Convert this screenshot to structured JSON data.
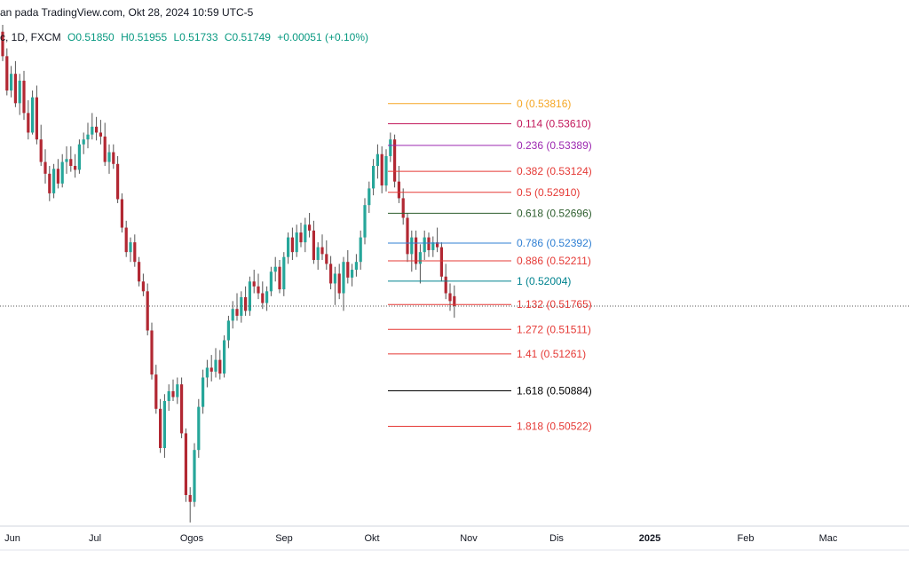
{
  "header": {
    "caption": "an pada TradingView.com, Okt 28, 2024 10:59 UTC-5",
    "symbol_suffix": "c, 1D, FXCM",
    "open": "O0.51850",
    "high": "H0.51955",
    "low": "L0.51733",
    "close": "C0.51749",
    "change": "+0.00051 (+0.10%)"
  },
  "colors": {
    "up": "#26a69a",
    "down": "#b22833",
    "wick": "#555555"
  },
  "chart_data": {
    "type": "candlestick",
    "title": "",
    "ylim": [
      0.4953,
      0.5462
    ],
    "last_price": 0.51749,
    "x_labels": [
      "Jun",
      "Jul",
      "Ogos",
      "Sep",
      "Okt",
      "Nov",
      "Dis",
      "2025",
      "Feb",
      "Mac"
    ],
    "candles": [
      {
        "date": "2024-06-03",
        "o": 0.5455,
        "h": 0.5462,
        "l": 0.5425,
        "c": 0.543
      },
      {
        "date": "2024-06-04",
        "o": 0.543,
        "h": 0.5438,
        "l": 0.539,
        "c": 0.5395
      },
      {
        "date": "2024-06-05",
        "o": 0.5395,
        "h": 0.542,
        "l": 0.5388,
        "c": 0.5412
      },
      {
        "date": "2024-06-06",
        "o": 0.5412,
        "h": 0.5425,
        "l": 0.5378,
        "c": 0.5382
      },
      {
        "date": "2024-06-07",
        "o": 0.5382,
        "h": 0.5412,
        "l": 0.537,
        "c": 0.5405
      },
      {
        "date": "2024-06-10",
        "o": 0.5405,
        "h": 0.5415,
        "l": 0.5365,
        "c": 0.5372
      },
      {
        "date": "2024-06-11",
        "o": 0.5372,
        "h": 0.5385,
        "l": 0.5345,
        "c": 0.5352
      },
      {
        "date": "2024-06-12",
        "o": 0.5352,
        "h": 0.5395,
        "l": 0.535,
        "c": 0.5388
      },
      {
        "date": "2024-06-13",
        "o": 0.5388,
        "h": 0.54,
        "l": 0.534,
        "c": 0.5345
      },
      {
        "date": "2024-06-14",
        "o": 0.5345,
        "h": 0.536,
        "l": 0.5318,
        "c": 0.5322
      },
      {
        "date": "2024-06-17",
        "o": 0.5322,
        "h": 0.5335,
        "l": 0.53,
        "c": 0.531
      },
      {
        "date": "2024-06-18",
        "o": 0.531,
        "h": 0.5318,
        "l": 0.5282,
        "c": 0.529
      },
      {
        "date": "2024-06-19",
        "o": 0.529,
        "h": 0.532,
        "l": 0.5285,
        "c": 0.5315
      },
      {
        "date": "2024-06-20",
        "o": 0.5315,
        "h": 0.5325,
        "l": 0.5295,
        "c": 0.53
      },
      {
        "date": "2024-06-21",
        "o": 0.53,
        "h": 0.533,
        "l": 0.5296,
        "c": 0.5322
      },
      {
        "date": "2024-06-24",
        "o": 0.5322,
        "h": 0.5338,
        "l": 0.531,
        "c": 0.5325
      },
      {
        "date": "2024-06-25",
        "o": 0.5325,
        "h": 0.5338,
        "l": 0.5312,
        "c": 0.5318
      },
      {
        "date": "2024-06-26",
        "o": 0.5318,
        "h": 0.533,
        "l": 0.5306,
        "c": 0.5314
      },
      {
        "date": "2024-06-27",
        "o": 0.5314,
        "h": 0.5345,
        "l": 0.531,
        "c": 0.534
      },
      {
        "date": "2024-06-28",
        "o": 0.534,
        "h": 0.5352,
        "l": 0.533,
        "c": 0.5345
      },
      {
        "date": "2024-07-01",
        "o": 0.5345,
        "h": 0.5362,
        "l": 0.5336,
        "c": 0.535
      },
      {
        "date": "2024-07-02",
        "o": 0.535,
        "h": 0.5372,
        "l": 0.5345,
        "c": 0.5358
      },
      {
        "date": "2024-07-03",
        "o": 0.5358,
        "h": 0.5368,
        "l": 0.5344,
        "c": 0.5352
      },
      {
        "date": "2024-07-05",
        "o": 0.5352,
        "h": 0.5365,
        "l": 0.534,
        "c": 0.5348
      },
      {
        "date": "2024-07-08",
        "o": 0.5348,
        "h": 0.5362,
        "l": 0.5318,
        "c": 0.5322
      },
      {
        "date": "2024-07-09",
        "o": 0.5322,
        "h": 0.534,
        "l": 0.531,
        "c": 0.5332
      },
      {
        "date": "2024-07-10",
        "o": 0.5332,
        "h": 0.534,
        "l": 0.5315,
        "c": 0.532
      },
      {
        "date": "2024-07-11",
        "o": 0.532,
        "h": 0.5328,
        "l": 0.528,
        "c": 0.5284
      },
      {
        "date": "2024-07-12",
        "o": 0.5284,
        "h": 0.529,
        "l": 0.525,
        "c": 0.5255
      },
      {
        "date": "2024-07-15",
        "o": 0.5255,
        "h": 0.5262,
        "l": 0.5225,
        "c": 0.523
      },
      {
        "date": "2024-07-16",
        "o": 0.523,
        "h": 0.5245,
        "l": 0.522,
        "c": 0.524
      },
      {
        "date": "2024-07-17",
        "o": 0.524,
        "h": 0.5248,
        "l": 0.5215,
        "c": 0.522
      },
      {
        "date": "2024-07-18",
        "o": 0.522,
        "h": 0.5225,
        "l": 0.5195,
        "c": 0.52
      },
      {
        "date": "2024-07-19",
        "o": 0.52,
        "h": 0.5208,
        "l": 0.5185,
        "c": 0.519
      },
      {
        "date": "2024-07-22",
        "o": 0.519,
        "h": 0.5198,
        "l": 0.5145,
        "c": 0.515
      },
      {
        "date": "2024-07-23",
        "o": 0.515,
        "h": 0.5158,
        "l": 0.51,
        "c": 0.5105
      },
      {
        "date": "2024-07-24",
        "o": 0.5105,
        "h": 0.5115,
        "l": 0.5065,
        "c": 0.507
      },
      {
        "date": "2024-07-25",
        "o": 0.507,
        "h": 0.508,
        "l": 0.5025,
        "c": 0.503
      },
      {
        "date": "2024-07-26",
        "o": 0.503,
        "h": 0.5085,
        "l": 0.502,
        "c": 0.5078
      },
      {
        "date": "2024-07-29",
        "o": 0.5078,
        "h": 0.5095,
        "l": 0.5068,
        "c": 0.5088
      },
      {
        "date": "2024-07-30",
        "o": 0.5088,
        "h": 0.51,
        "l": 0.5078,
        "c": 0.5082
      },
      {
        "date": "2024-07-31",
        "o": 0.5082,
        "h": 0.5102,
        "l": 0.5075,
        "c": 0.5095
      },
      {
        "date": "2024-08-01",
        "o": 0.5095,
        "h": 0.5102,
        "l": 0.504,
        "c": 0.5045
      },
      {
        "date": "2024-08-02",
        "o": 0.5045,
        "h": 0.505,
        "l": 0.4975,
        "c": 0.4982
      },
      {
        "date": "2024-08-05",
        "o": 0.4982,
        "h": 0.499,
        "l": 0.4954,
        "c": 0.4975
      },
      {
        "date": "2024-08-06",
        "o": 0.4975,
        "h": 0.5035,
        "l": 0.497,
        "c": 0.5028
      },
      {
        "date": "2024-08-07",
        "o": 0.5028,
        "h": 0.508,
        "l": 0.502,
        "c": 0.5072
      },
      {
        "date": "2024-08-08",
        "o": 0.5072,
        "h": 0.511,
        "l": 0.5065,
        "c": 0.5102
      },
      {
        "date": "2024-08-09",
        "o": 0.5102,
        "h": 0.512,
        "l": 0.5092,
        "c": 0.5112
      },
      {
        "date": "2024-08-12",
        "o": 0.5112,
        "h": 0.5125,
        "l": 0.5098,
        "c": 0.5108
      },
      {
        "date": "2024-08-13",
        "o": 0.5108,
        "h": 0.5132,
        "l": 0.5102,
        "c": 0.512
      },
      {
        "date": "2024-08-14",
        "o": 0.512,
        "h": 0.513,
        "l": 0.51,
        "c": 0.5106
      },
      {
        "date": "2024-08-15",
        "o": 0.5106,
        "h": 0.5145,
        "l": 0.5102,
        "c": 0.514
      },
      {
        "date": "2024-08-16",
        "o": 0.514,
        "h": 0.5165,
        "l": 0.5132,
        "c": 0.516
      },
      {
        "date": "2024-08-19",
        "o": 0.516,
        "h": 0.518,
        "l": 0.5152,
        "c": 0.5172
      },
      {
        "date": "2024-08-20",
        "o": 0.5172,
        "h": 0.5188,
        "l": 0.516,
        "c": 0.5165
      },
      {
        "date": "2024-08-21",
        "o": 0.5165,
        "h": 0.519,
        "l": 0.5158,
        "c": 0.5184
      },
      {
        "date": "2024-08-22",
        "o": 0.5184,
        "h": 0.5195,
        "l": 0.5165,
        "c": 0.517
      },
      {
        "date": "2024-08-23",
        "o": 0.517,
        "h": 0.5205,
        "l": 0.5165,
        "c": 0.52
      },
      {
        "date": "2024-08-26",
        "o": 0.52,
        "h": 0.5212,
        "l": 0.5188,
        "c": 0.5195
      },
      {
        "date": "2024-08-27",
        "o": 0.5195,
        "h": 0.5208,
        "l": 0.5182,
        "c": 0.5188
      },
      {
        "date": "2024-08-28",
        "o": 0.5188,
        "h": 0.52,
        "l": 0.5172,
        "c": 0.5178
      },
      {
        "date": "2024-08-29",
        "o": 0.5178,
        "h": 0.5195,
        "l": 0.517,
        "c": 0.519
      },
      {
        "date": "2024-08-30",
        "o": 0.519,
        "h": 0.5215,
        "l": 0.5185,
        "c": 0.521
      },
      {
        "date": "2024-09-02",
        "o": 0.521,
        "h": 0.5225,
        "l": 0.52,
        "c": 0.5215
      },
      {
        "date": "2024-09-03",
        "o": 0.5215,
        "h": 0.5222,
        "l": 0.5188,
        "c": 0.5192
      },
      {
        "date": "2024-09-04",
        "o": 0.5192,
        "h": 0.523,
        "l": 0.5185,
        "c": 0.5225
      },
      {
        "date": "2024-09-05",
        "o": 0.5225,
        "h": 0.525,
        "l": 0.5218,
        "c": 0.5245
      },
      {
        "date": "2024-09-06",
        "o": 0.5245,
        "h": 0.5255,
        "l": 0.5222,
        "c": 0.523
      },
      {
        "date": "2024-09-09",
        "o": 0.523,
        "h": 0.5258,
        "l": 0.5225,
        "c": 0.525
      },
      {
        "date": "2024-09-10",
        "o": 0.525,
        "h": 0.526,
        "l": 0.5235,
        "c": 0.524
      },
      {
        "date": "2024-09-11",
        "o": 0.524,
        "h": 0.5265,
        "l": 0.523,
        "c": 0.5258
      },
      {
        "date": "2024-09-12",
        "o": 0.5258,
        "h": 0.527,
        "l": 0.5245,
        "c": 0.5252
      },
      {
        "date": "2024-09-13",
        "o": 0.5252,
        "h": 0.5262,
        "l": 0.5218,
        "c": 0.5222
      },
      {
        "date": "2024-09-16",
        "o": 0.5222,
        "h": 0.524,
        "l": 0.5212,
        "c": 0.5235
      },
      {
        "date": "2024-09-17",
        "o": 0.5235,
        "h": 0.5248,
        "l": 0.5222,
        "c": 0.5228
      },
      {
        "date": "2024-09-18",
        "o": 0.5228,
        "h": 0.5242,
        "l": 0.5212,
        "c": 0.5218
      },
      {
        "date": "2024-09-19",
        "o": 0.5218,
        "h": 0.5226,
        "l": 0.5192,
        "c": 0.5198
      },
      {
        "date": "2024-09-20",
        "o": 0.5198,
        "h": 0.5215,
        "l": 0.5176,
        "c": 0.5208
      },
      {
        "date": "2024-09-23",
        "o": 0.5208,
        "h": 0.5218,
        "l": 0.5182,
        "c": 0.5188
      },
      {
        "date": "2024-09-24",
        "o": 0.5188,
        "h": 0.5225,
        "l": 0.517,
        "c": 0.522
      },
      {
        "date": "2024-09-25",
        "o": 0.522,
        "h": 0.5232,
        "l": 0.5198,
        "c": 0.5204
      },
      {
        "date": "2024-09-26",
        "o": 0.5204,
        "h": 0.5218,
        "l": 0.5195,
        "c": 0.5212
      },
      {
        "date": "2024-09-27",
        "o": 0.5212,
        "h": 0.5228,
        "l": 0.5205,
        "c": 0.522
      },
      {
        "date": "2024-09-30",
        "o": 0.522,
        "h": 0.5252,
        "l": 0.5212,
        "c": 0.5245
      },
      {
        "date": "2024-10-01",
        "o": 0.5245,
        "h": 0.5285,
        "l": 0.5238,
        "c": 0.5278
      },
      {
        "date": "2024-10-02",
        "o": 0.5278,
        "h": 0.5302,
        "l": 0.527,
        "c": 0.5295
      },
      {
        "date": "2024-10-03",
        "o": 0.5295,
        "h": 0.5325,
        "l": 0.5288,
        "c": 0.5318
      },
      {
        "date": "2024-10-04",
        "o": 0.5318,
        "h": 0.534,
        "l": 0.5305,
        "c": 0.533
      },
      {
        "date": "2024-10-07",
        "o": 0.533,
        "h": 0.5338,
        "l": 0.529,
        "c": 0.5298
      },
      {
        "date": "2024-10-08",
        "o": 0.5298,
        "h": 0.5335,
        "l": 0.5292,
        "c": 0.5328
      },
      {
        "date": "2024-10-09",
        "o": 0.5328,
        "h": 0.5352,
        "l": 0.5322,
        "c": 0.5345
      },
      {
        "date": "2024-10-10",
        "o": 0.5345,
        "h": 0.535,
        "l": 0.5296,
        "c": 0.5302
      },
      {
        "date": "2024-10-11",
        "o": 0.5302,
        "h": 0.5318,
        "l": 0.528,
        "c": 0.5285
      },
      {
        "date": "2024-10-14",
        "o": 0.5285,
        "h": 0.5295,
        "l": 0.5258,
        "c": 0.5265
      },
      {
        "date": "2024-10-15",
        "o": 0.5265,
        "h": 0.527,
        "l": 0.522,
        "c": 0.5228
      },
      {
        "date": "2024-10-16",
        "o": 0.5228,
        "h": 0.5252,
        "l": 0.521,
        "c": 0.5245
      },
      {
        "date": "2024-10-17",
        "o": 0.5245,
        "h": 0.5252,
        "l": 0.5212,
        "c": 0.5218
      },
      {
        "date": "2024-10-18",
        "o": 0.5218,
        "h": 0.5238,
        "l": 0.5198,
        "c": 0.523
      },
      {
        "date": "2024-10-21",
        "o": 0.523,
        "h": 0.5252,
        "l": 0.5222,
        "c": 0.5245
      },
      {
        "date": "2024-10-22",
        "o": 0.5245,
        "h": 0.525,
        "l": 0.5225,
        "c": 0.5232
      },
      {
        "date": "2024-10-23",
        "o": 0.5232,
        "h": 0.5246,
        "l": 0.5225,
        "c": 0.524
      },
      {
        "date": "2024-10-24",
        "o": 0.524,
        "h": 0.5255,
        "l": 0.523,
        "c": 0.5235
      },
      {
        "date": "2024-10-25",
        "o": 0.5235,
        "h": 0.524,
        "l": 0.52,
        "c": 0.5205
      },
      {
        "date": "2024-10-26",
        "o": 0.5205,
        "h": 0.5218,
        "l": 0.5182,
        "c": 0.5188
      },
      {
        "date": "2024-10-27",
        "o": 0.5188,
        "h": 0.5198,
        "l": 0.517,
        "c": 0.518
      },
      {
        "date": "2024-10-28",
        "o": 0.5185,
        "h": 0.5196,
        "l": 0.5163,
        "c": 0.5175
      }
    ],
    "fib_levels": [
      {
        "label": "0 (0.53816)",
        "value": 0.53816,
        "color": "#f5a623"
      },
      {
        "label": "0.114 (0.53610)",
        "value": 0.5361,
        "color": "#c2185b"
      },
      {
        "label": "0.236 (0.53389)",
        "value": 0.53389,
        "color": "#9c27b0"
      },
      {
        "label": "0.382 (0.53124)",
        "value": 0.53124,
        "color": "#e53935"
      },
      {
        "label": "0.5 (0.52910)",
        "value": 0.5291,
        "color": "#e53935"
      },
      {
        "label": "0.618 (0.52696)",
        "value": 0.52696,
        "color": "#2e5e2e"
      },
      {
        "label": "0.786 (0.52392)",
        "value": 0.52392,
        "color": "#2f7fd3"
      },
      {
        "label": "0.886 (0.52211)",
        "value": 0.52211,
        "color": "#e53935"
      },
      {
        "label": "1 (0.52004)",
        "value": 0.52004,
        "color": "#00838f"
      },
      {
        "label": "1.132 (0.51765)",
        "value": 0.51765,
        "color": "#e53935"
      },
      {
        "label": "1.272 (0.51511)",
        "value": 0.51511,
        "color": "#e53935"
      },
      {
        "label": "1.41 (0.51261)",
        "value": 0.51261,
        "color": "#e53935"
      },
      {
        "label": "1.618 (0.50884)",
        "value": 0.50884,
        "color": "#000000"
      },
      {
        "label": "1.818 (0.50522)",
        "value": 0.50522,
        "color": "#e53935"
      }
    ]
  }
}
